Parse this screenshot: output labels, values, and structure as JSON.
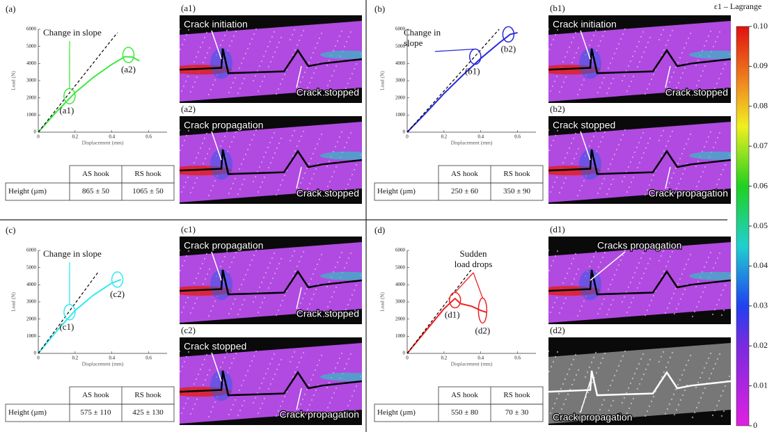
{
  "chart_data": [
    {
      "type": "line",
      "panel_label": "(a)",
      "xlabel": "Displacement (mm)",
      "ylabel": "Load (N)",
      "xlim": [
        0,
        0.7
      ],
      "ylim": [
        0,
        6000
      ],
      "xticks": [
        0,
        0.2,
        0.4,
        0.6
      ],
      "yticks": [
        0,
        1000,
        2000,
        3000,
        4000,
        5000,
        6000
      ],
      "series": [
        {
          "color": "#3ee83e",
          "dash": false,
          "x": [
            0,
            0.1,
            0.2,
            0.3,
            0.4,
            0.47,
            0.51,
            0.55
          ],
          "values": [
            0,
            1200,
            2300,
            3200,
            3950,
            4400,
            4380,
            4150
          ]
        },
        {
          "color": "#000000",
          "dash": true,
          "x": [
            0,
            0.43
          ],
          "values": [
            0,
            5800
          ]
        }
      ],
      "note": [
        "Change in slope"
      ],
      "markers": [
        {
          "label": "(a1)",
          "x": 0.17,
          "y": 2100
        },
        {
          "label": "(a2)",
          "x": 0.49,
          "y": 4500
        }
      ],
      "table": {
        "columns": [
          "AS hook",
          "RS hook"
        ],
        "row_label": "Height (µm)",
        "cells": [
          "865 ± 50",
          "1065 ± 50"
        ]
      }
    },
    {
      "type": "line",
      "panel_label": "(b)",
      "xlabel": "Displacement (mm)",
      "ylabel": "Load (N)",
      "xlim": [
        0,
        0.7
      ],
      "ylim": [
        0,
        6000
      ],
      "xticks": [
        0,
        0.2,
        0.4,
        0.6
      ],
      "yticks": [
        0,
        1000,
        2000,
        3000,
        4000,
        5000,
        6000
      ],
      "series": [
        {
          "color": "#2a2ad8",
          "dash": false,
          "x": [
            0,
            0.1,
            0.2,
            0.3,
            0.4,
            0.5,
            0.56,
            0.6
          ],
          "values": [
            0,
            1100,
            2250,
            3300,
            4300,
            5200,
            5700,
            5800
          ]
        },
        {
          "color": "#000000",
          "dash": true,
          "x": [
            0,
            0.5
          ],
          "values": [
            0,
            6000
          ]
        }
      ],
      "note": [
        "Change in",
        "slope"
      ],
      "markers": [
        {
          "label": "(b1)",
          "x": 0.37,
          "y": 4400
        },
        {
          "label": "(b2)",
          "x": 0.55,
          "y": 5700
        }
      ],
      "table": {
        "columns": [
          "AS hook",
          "RS hook"
        ],
        "row_label": "Height (µm)",
        "cells": [
          "250 ± 60",
          "350 ± 90"
        ]
      }
    },
    {
      "type": "line",
      "panel_label": "(c)",
      "xlabel": "Displacement (mm)",
      "ylabel": "Load (N)",
      "xlim": [
        0,
        0.7
      ],
      "ylim": [
        0,
        6000
      ],
      "xticks": [
        0,
        0.2,
        0.4,
        0.6
      ],
      "yticks": [
        0,
        1000,
        2000,
        3000,
        4000,
        5000,
        6000
      ],
      "series": [
        {
          "color": "#33e8f0",
          "dash": false,
          "x": [
            0,
            0.1,
            0.2,
            0.3,
            0.4,
            0.45
          ],
          "values": [
            0,
            1300,
            2500,
            3400,
            4100,
            4300
          ]
        },
        {
          "color": "#000000",
          "dash": true,
          "x": [
            0,
            0.33
          ],
          "values": [
            0,
            4800
          ]
        }
      ],
      "note": [
        "Change in slope"
      ],
      "markers": [
        {
          "label": "(c1)",
          "x": 0.17,
          "y": 2400
        },
        {
          "label": "(c2)",
          "x": 0.43,
          "y": 4300
        }
      ],
      "table": {
        "columns": [
          "AS hook",
          "RS hook"
        ],
        "row_label": "Height (µm)",
        "cells": [
          "575 ± 110",
          "425 ± 130"
        ]
      }
    },
    {
      "type": "line",
      "panel_label": "(d)",
      "xlabel": "Displacement (mm)",
      "ylabel": "Load (N)",
      "xlim": [
        0,
        0.7
      ],
      "ylim": [
        0,
        6000
      ],
      "xticks": [
        0,
        0.2,
        0.4,
        0.6
      ],
      "yticks": [
        0,
        1000,
        2000,
        3000,
        4000,
        5000,
        6000
      ],
      "series": [
        {
          "color": "#ee2222",
          "dash": false,
          "x": [
            0,
            0.1,
            0.2,
            0.26,
            0.29,
            0.35,
            0.4,
            0.43
          ],
          "values": [
            0,
            1300,
            2600,
            3200,
            2900,
            2750,
            2500,
            2400
          ]
        },
        {
          "color": "#000000",
          "dash": true,
          "x": [
            0,
            0.35
          ],
          "values": [
            0,
            4900
          ]
        }
      ],
      "note": [
        "Sudden",
        "load drops"
      ],
      "markers": [
        {
          "label": "(d1)",
          "x": 0.26,
          "y": 3100
        },
        {
          "label": "(d2)",
          "x": 0.41,
          "y": 2500
        }
      ],
      "table": {
        "columns": [
          "AS hook",
          "RS hook"
        ],
        "row_label": "Height (µm)",
        "cells": [
          "550 ± 80",
          "70 ± 30"
        ]
      }
    }
  ],
  "images": [
    {
      "label": "(a1)",
      "grayscale": false,
      "annotations": [
        "Crack initiation",
        "Crack stopped"
      ]
    },
    {
      "label": "(a2)",
      "grayscale": false,
      "annotations": [
        "Crack propagation",
        "Crack stopped"
      ]
    },
    {
      "label": "(b1)",
      "grayscale": false,
      "annotations": [
        "Crack initiation",
        "Crack stopped"
      ]
    },
    {
      "label": "(b2)",
      "grayscale": false,
      "annotations": [
        "Crack stopped",
        "Crack propagation"
      ]
    },
    {
      "label": "(c1)",
      "grayscale": false,
      "annotations": [
        "Crack propagation",
        "Crack stopped"
      ]
    },
    {
      "label": "(c2)",
      "grayscale": false,
      "annotations": [
        "Crack stopped",
        "Crack propagation"
      ]
    },
    {
      "label": "(d1)",
      "grayscale": false,
      "annotations": [
        "Cracks propagation"
      ]
    },
    {
      "label": "(d2)",
      "grayscale": true,
      "annotations": [
        "Crack propagation"
      ]
    }
  ],
  "colorbar": {
    "title": "ε1 – Lagrange",
    "ticks": [
      0,
      0.01,
      0.02,
      0.03,
      0.04,
      0.05,
      0.06,
      0.07,
      0.08,
      0.09,
      {
        "value": 0.1,
        "label": "0.10"
      }
    ]
  }
}
